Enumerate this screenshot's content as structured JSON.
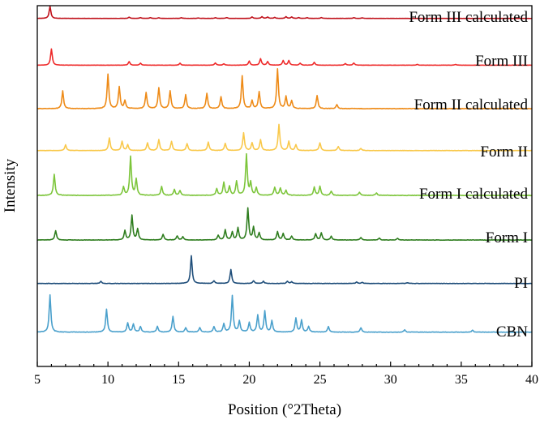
{
  "chart_data": {
    "type": "line",
    "title": "",
    "xlabel": "Position (°2Theta)",
    "ylabel": "Intensity",
    "xlim": [
      5,
      40
    ],
    "xticks": [
      5,
      10,
      15,
      20,
      25,
      30,
      35,
      40
    ],
    "grid": false,
    "legend": "inline labels at right end of each trace",
    "series": [
      {
        "name": "Form III calculated",
        "color": "#c0101a",
        "baseline": 0.02,
        "peaks": [
          [
            5.9,
            1.0
          ],
          [
            11.5,
            0.1
          ],
          [
            12.3,
            0.07
          ],
          [
            13.0,
            0.06
          ],
          [
            13.6,
            0.05
          ],
          [
            15.2,
            0.06
          ],
          [
            16.4,
            0.04
          ],
          [
            17.6,
            0.06
          ],
          [
            18.4,
            0.07
          ],
          [
            20.2,
            0.12
          ],
          [
            20.9,
            0.14
          ],
          [
            21.3,
            0.11
          ],
          [
            21.8,
            0.08
          ],
          [
            22.6,
            0.14
          ],
          [
            23.0,
            0.12
          ],
          [
            23.5,
            0.07
          ],
          [
            24.1,
            0.06
          ],
          [
            25.1,
            0.07
          ],
          [
            27.4,
            0.06
          ],
          [
            28.0,
            0.05
          ]
        ]
      },
      {
        "name": "Form III",
        "color": "#ee2a2a",
        "baseline": 0.03,
        "peaks": [
          [
            6.0,
            1.0
          ],
          [
            11.5,
            0.22
          ],
          [
            12.3,
            0.12
          ],
          [
            15.1,
            0.12
          ],
          [
            17.6,
            0.14
          ],
          [
            18.2,
            0.08
          ],
          [
            20.0,
            0.25
          ],
          [
            20.8,
            0.4
          ],
          [
            21.3,
            0.22
          ],
          [
            22.4,
            0.28
          ],
          [
            22.8,
            0.28
          ],
          [
            23.6,
            0.12
          ],
          [
            24.6,
            0.17
          ],
          [
            26.8,
            0.1
          ],
          [
            27.4,
            0.13
          ],
          [
            31.9,
            0.05
          ],
          [
            34.6,
            0.05
          ]
        ]
      },
      {
        "name": "Form II calculated",
        "color": "#ee8a16",
        "baseline": 0.02,
        "peaks": [
          [
            6.8,
            0.45
          ],
          [
            10.0,
            0.87
          ],
          [
            10.8,
            0.55
          ],
          [
            11.2,
            0.2
          ],
          [
            12.7,
            0.4
          ],
          [
            13.6,
            0.52
          ],
          [
            14.4,
            0.45
          ],
          [
            15.5,
            0.35
          ],
          [
            17.0,
            0.38
          ],
          [
            18.0,
            0.3
          ],
          [
            19.5,
            0.82
          ],
          [
            20.2,
            0.2
          ],
          [
            20.7,
            0.42
          ],
          [
            22.0,
            1.0
          ],
          [
            22.6,
            0.3
          ],
          [
            23.0,
            0.2
          ],
          [
            24.8,
            0.33
          ],
          [
            26.2,
            0.1
          ]
        ]
      },
      {
        "name": "Form II",
        "color": "#f9c84a",
        "baseline": 0.04,
        "peaks": [
          [
            7.0,
            0.22
          ],
          [
            10.1,
            0.48
          ],
          [
            11.0,
            0.35
          ],
          [
            11.4,
            0.22
          ],
          [
            12.8,
            0.3
          ],
          [
            13.6,
            0.42
          ],
          [
            14.5,
            0.35
          ],
          [
            15.6,
            0.27
          ],
          [
            17.1,
            0.32
          ],
          [
            18.3,
            0.28
          ],
          [
            19.6,
            0.68
          ],
          [
            20.2,
            0.3
          ],
          [
            20.8,
            0.42
          ],
          [
            22.1,
            1.0
          ],
          [
            22.8,
            0.35
          ],
          [
            23.3,
            0.22
          ],
          [
            25.0,
            0.3
          ],
          [
            26.3,
            0.16
          ],
          [
            27.9,
            0.08
          ]
        ]
      },
      {
        "name": "Form I calculated",
        "color": "#7cc53a",
        "baseline": 0.02,
        "peaks": [
          [
            6.2,
            0.52
          ],
          [
            11.1,
            0.2
          ],
          [
            11.6,
            0.95
          ],
          [
            12.0,
            0.4
          ],
          [
            13.8,
            0.22
          ],
          [
            14.7,
            0.14
          ],
          [
            15.1,
            0.12
          ],
          [
            17.7,
            0.16
          ],
          [
            18.2,
            0.32
          ],
          [
            18.6,
            0.22
          ],
          [
            19.1,
            0.35
          ],
          [
            19.8,
            1.0
          ],
          [
            20.1,
            0.3
          ],
          [
            20.5,
            0.18
          ],
          [
            21.8,
            0.2
          ],
          [
            22.2,
            0.18
          ],
          [
            22.6,
            0.12
          ],
          [
            24.6,
            0.2
          ],
          [
            25.0,
            0.22
          ],
          [
            25.8,
            0.1
          ],
          [
            27.8,
            0.08
          ],
          [
            29.0,
            0.06
          ]
        ]
      },
      {
        "name": "Form I",
        "color": "#2e7d1e",
        "baseline": 0.05,
        "peaks": [
          [
            6.3,
            0.3
          ],
          [
            11.2,
            0.3
          ],
          [
            11.7,
            0.78
          ],
          [
            12.1,
            0.35
          ],
          [
            13.9,
            0.18
          ],
          [
            14.9,
            0.13
          ],
          [
            15.3,
            0.1
          ],
          [
            17.8,
            0.15
          ],
          [
            18.3,
            0.32
          ],
          [
            18.8,
            0.25
          ],
          [
            19.2,
            0.38
          ],
          [
            19.9,
            1.0
          ],
          [
            20.3,
            0.4
          ],
          [
            20.7,
            0.22
          ],
          [
            22.0,
            0.26
          ],
          [
            22.4,
            0.2
          ],
          [
            23.0,
            0.12
          ],
          [
            24.7,
            0.2
          ],
          [
            25.1,
            0.22
          ],
          [
            25.8,
            0.12
          ],
          [
            27.9,
            0.08
          ],
          [
            29.2,
            0.06
          ],
          [
            30.5,
            0.05
          ]
        ]
      },
      {
        "name": "PI",
        "color": "#1f4e7a",
        "baseline": 0.01,
        "peaks": [
          [
            9.5,
            0.08
          ],
          [
            15.9,
            1.0
          ],
          [
            17.5,
            0.1
          ],
          [
            18.7,
            0.5
          ],
          [
            20.3,
            0.1
          ],
          [
            21.0,
            0.08
          ],
          [
            22.7,
            0.08
          ],
          [
            23.0,
            0.06
          ],
          [
            27.6,
            0.05
          ],
          [
            28.0,
            0.04
          ],
          [
            31.2,
            0.03
          ]
        ]
      },
      {
        "name": "CBN",
        "color": "#4aa0cc",
        "baseline": 0.05,
        "peaks": [
          [
            5.9,
            1.0
          ],
          [
            9.9,
            0.62
          ],
          [
            11.4,
            0.25
          ],
          [
            11.8,
            0.22
          ],
          [
            12.3,
            0.15
          ],
          [
            13.5,
            0.15
          ],
          [
            14.6,
            0.42
          ],
          [
            15.5,
            0.12
          ],
          [
            16.5,
            0.12
          ],
          [
            17.5,
            0.15
          ],
          [
            18.2,
            0.22
          ],
          [
            18.8,
            0.98
          ],
          [
            19.3,
            0.3
          ],
          [
            20.0,
            0.25
          ],
          [
            20.6,
            0.45
          ],
          [
            21.1,
            0.56
          ],
          [
            21.6,
            0.3
          ],
          [
            23.3,
            0.38
          ],
          [
            23.7,
            0.32
          ],
          [
            24.2,
            0.15
          ],
          [
            25.6,
            0.15
          ],
          [
            27.9,
            0.12
          ],
          [
            31.0,
            0.06
          ],
          [
            35.8,
            0.05
          ]
        ]
      }
    ]
  }
}
